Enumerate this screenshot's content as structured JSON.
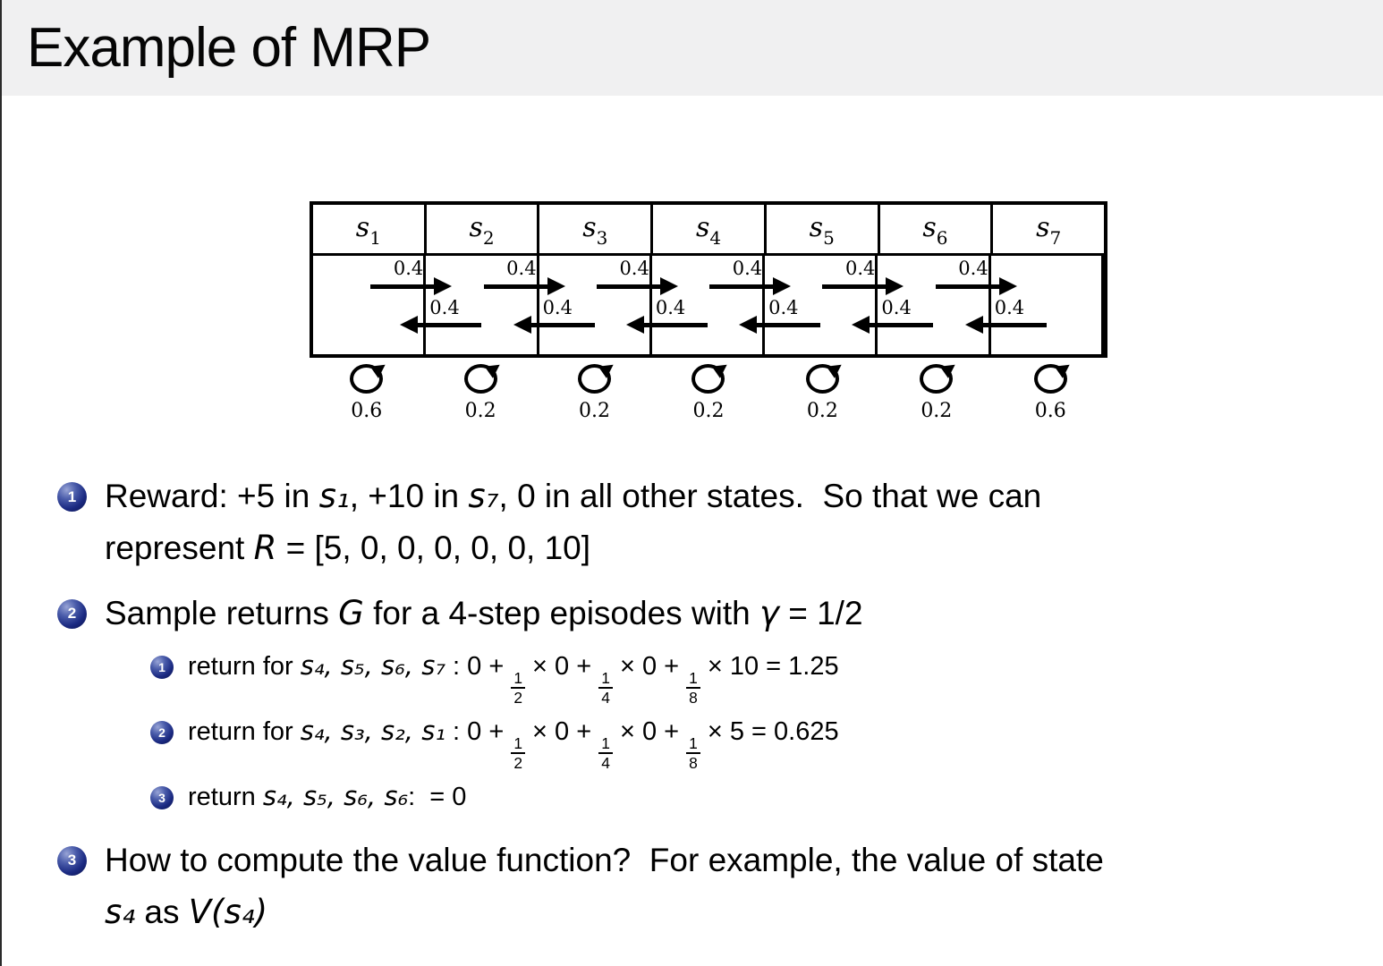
{
  "title": "Example of MRP",
  "diagram": {
    "states": [
      {
        "base": "s",
        "sub": "1"
      },
      {
        "base": "s",
        "sub": "2"
      },
      {
        "base": "s",
        "sub": "3"
      },
      {
        "base": "s",
        "sub": "4"
      },
      {
        "base": "s",
        "sub": "5"
      },
      {
        "base": "s",
        "sub": "6"
      },
      {
        "base": "s",
        "sub": "7"
      }
    ],
    "transition_right_label": "0.4",
    "transition_left_label": "0.4",
    "self_loop_labels": [
      "0.6",
      "0.2",
      "0.2",
      "0.2",
      "0.2",
      "0.2",
      "0.6"
    ]
  },
  "content": {
    "item1": {
      "num": "1",
      "line1_a": "Reward: +5 in ",
      "line1_s1": "s₁",
      "line1_b": ", +10 in ",
      "line1_s7": "s₇",
      "line1_c": ", 0 in all other states.  So that we can",
      "line2_a": "represent ",
      "line2_R": "R",
      "line2_b": " = [5, 0, 0, 0, 0, 0, 10]"
    },
    "item2": {
      "num": "2",
      "a": "Sample returns ",
      "G": "G",
      "b": " for a 4-step episodes with ",
      "gamma": "γ",
      "c": " = 1/2",
      "subitems": [
        {
          "num": "1",
          "label": "return for ",
          "states": "s₄, s₅, s₆, s₇",
          "colon": " : ",
          "t0": "0 + ",
          "f1n": "1",
          "f1d": "2",
          "t1": " × 0 + ",
          "f2n": "1",
          "f2d": "4",
          "t2": " × 0 + ",
          "f3n": "1",
          "f3d": "8",
          "t3": " × 10 = 1.25"
        },
        {
          "num": "2",
          "label": "return for ",
          "states": "s₄, s₃, s₂, s₁",
          "colon": " : ",
          "t0": "0 + ",
          "f1n": "1",
          "f1d": "2",
          "t1": " × 0 + ",
          "f2n": "1",
          "f2d": "4",
          "t2": " × 0 + ",
          "f3n": "1",
          "f3d": "8",
          "t3": " × 5 = 0.625"
        },
        {
          "num": "3",
          "label": "return ",
          "states": "s₄, s₅, s₆, s₆",
          "colon": ": ",
          "t3": " = 0"
        }
      ]
    },
    "item3": {
      "num": "3",
      "line1": "How to compute the value function?  For example, the value of state",
      "line2_s4": "s₄",
      "line2_a": " as ",
      "line2_V": "V(s₄)"
    }
  }
}
